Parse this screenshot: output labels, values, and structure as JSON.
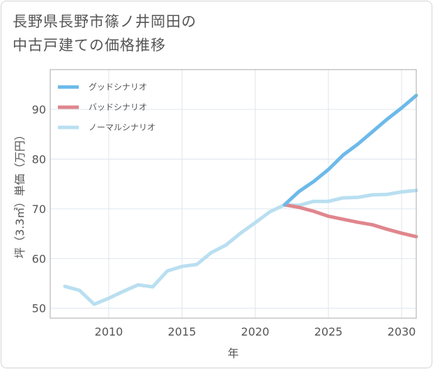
{
  "title_lines": [
    "長野県長野市篠ノ井岡田の",
    "中古戸建ての価格推移"
  ],
  "chart_data": {
    "type": "line",
    "title": "長野県長野市篠ノ井岡田の中古戸建ての価格推移",
    "xlabel": "年",
    "ylabel": "坪（3.3㎡）単価（万円）",
    "xlim": [
      2006,
      2031
    ],
    "ylim": [
      48,
      98
    ],
    "x_ticks": [
      2010,
      2015,
      2020,
      2025,
      2030
    ],
    "y_ticks": [
      50,
      60,
      70,
      80,
      90
    ],
    "grid": true,
    "legend_position": "top-left",
    "series": [
      {
        "name": "グッドシナリオ",
        "color": "#6cb9ea",
        "x": [
          2022,
          2023,
          2024,
          2025,
          2026,
          2027,
          2028,
          2029,
          2030,
          2031
        ],
        "y": [
          70.8,
          73.5,
          75.5,
          77.9,
          80.8,
          83.0,
          85.5,
          88.0,
          90.3,
          92.8
        ]
      },
      {
        "name": "バッドシナリオ",
        "color": "#e0868d",
        "x": [
          2022,
          2023,
          2024,
          2025,
          2026,
          2027,
          2028,
          2029,
          2030,
          2031
        ],
        "y": [
          70.8,
          70.3,
          69.5,
          68.5,
          67.9,
          67.3,
          66.8,
          65.9,
          65.1,
          64.4
        ]
      },
      {
        "name": "ノーマルシナリオ",
        "color": "#b9dff0",
        "x": [
          2007,
          2008,
          2009,
          2010,
          2011,
          2012,
          2013,
          2014,
          2015,
          2016,
          2017,
          2018,
          2019,
          2020,
          2021,
          2022,
          2023,
          2024,
          2025,
          2026,
          2027,
          2028,
          2029,
          2030,
          2031
        ],
        "y": [
          54.4,
          53.6,
          50.8,
          52.0,
          53.4,
          54.7,
          54.3,
          57.5,
          58.4,
          58.8,
          61.2,
          62.7,
          65.1,
          67.2,
          69.4,
          70.8,
          70.7,
          71.5,
          71.5,
          72.2,
          72.3,
          72.8,
          72.9,
          73.4,
          73.7
        ]
      }
    ]
  }
}
